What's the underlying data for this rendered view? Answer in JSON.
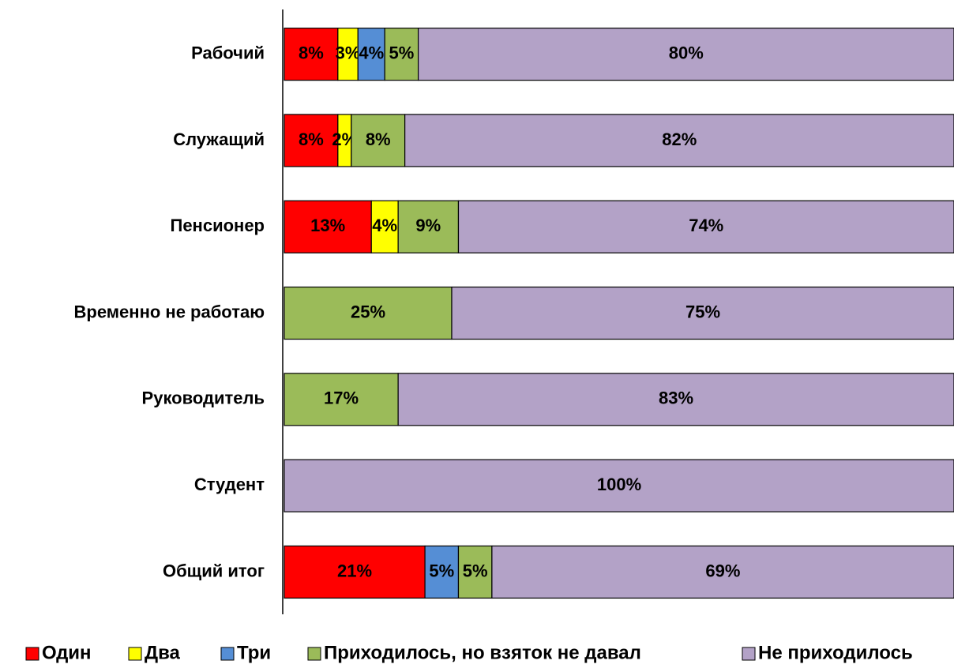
{
  "chart_data": {
    "type": "stacked_bar_horizontal_100",
    "categories": [
      "Рабочий",
      "Служащий",
      "Пенсионер",
      "Временно не работаю",
      "Руководитель",
      "Студент",
      "Общий итог"
    ],
    "series": [
      {
        "name": "Один",
        "color": "#ff0000",
        "values": [
          8,
          8,
          13,
          null,
          null,
          null,
          21
        ],
        "value_labels": [
          "8%",
          "8%",
          "13%",
          null,
          null,
          null,
          "21%"
        ]
      },
      {
        "name": "Два",
        "color": "#ffff00",
        "values": [
          3,
          2,
          4,
          null,
          null,
          null,
          null
        ],
        "value_labels": [
          "3%",
          "2%",
          "4%",
          null,
          null,
          null,
          null
        ]
      },
      {
        "name": "Три",
        "color": "#558ed5",
        "values": [
          4,
          null,
          null,
          null,
          null,
          null,
          5
        ],
        "value_labels": [
          "4%",
          null,
          null,
          null,
          null,
          null,
          "5%"
        ]
      },
      {
        "name": "Приходилось, но взяток не давал",
        "color": "#9bbb59",
        "values": [
          5,
          8,
          9,
          25,
          17,
          null,
          5
        ],
        "value_labels": [
          "5%",
          "8%",
          "9%",
          "25%",
          "17%",
          null,
          "5%"
        ]
      },
      {
        "name": "Не приходилось",
        "color": "#b3a2c7",
        "values": [
          80,
          82,
          74,
          75,
          83,
          100,
          69
        ],
        "value_labels": [
          "80%",
          "82%",
          "74%",
          "75%",
          "83%",
          "100%",
          "69%"
        ]
      }
    ],
    "legend": "bottom"
  }
}
